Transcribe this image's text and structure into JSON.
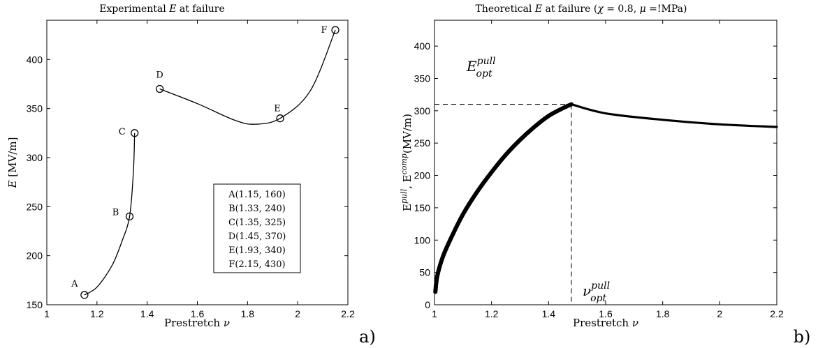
{
  "chart_data": [
    {
      "type": "line",
      "title": "Experimental E at failure",
      "xlabel": "Prestretch ν",
      "ylabel": "E [MV/m]",
      "xlim": [
        1,
        2.2
      ],
      "ylim": [
        150,
        440
      ],
      "xticks": [
        "1",
        "1.2",
        "1.4",
        "1.6",
        "1.8",
        "2",
        "2.2"
      ],
      "yticks": [
        "150",
        "200",
        "250",
        "300",
        "350",
        "400"
      ],
      "points": [
        {
          "label": "A",
          "x": 1.15,
          "y": 160
        },
        {
          "label": "B",
          "x": 1.33,
          "y": 240
        },
        {
          "label": "C",
          "x": 1.35,
          "y": 325
        },
        {
          "label": "D",
          "x": 1.45,
          "y": 370
        },
        {
          "label": "E",
          "x": 1.93,
          "y": 340
        },
        {
          "label": "F",
          "x": 2.15,
          "y": 430
        }
      ],
      "curves": [
        [
          [
            1.15,
            160
          ],
          [
            1.2,
            168
          ],
          [
            1.26,
            190
          ],
          [
            1.3,
            215
          ],
          [
            1.33,
            240
          ],
          [
            1.345,
            285
          ],
          [
            1.35,
            325
          ]
        ],
        [
          [
            1.45,
            370
          ],
          [
            1.6,
            355
          ],
          [
            1.75,
            338
          ],
          [
            1.83,
            334
          ],
          [
            1.93,
            340
          ],
          [
            2.05,
            368
          ],
          [
            2.15,
            430
          ]
        ]
      ],
      "legend_entries": [
        "A(1.15, 160)",
        "B(1.33, 240)",
        "C(1.35, 325)",
        "D(1.45, 370)",
        "E(1.93, 340)",
        "F(2.15, 430)"
      ],
      "legend_placement": "bottom-right",
      "panel_label": "a)"
    },
    {
      "type": "line",
      "title": "Theoretical E at failure (χ = 0.8, μ =!MPa)",
      "xlabel": "Prestretch ν",
      "ylabel": "E^pull, E^comp (MV/m)",
      "xlim": [
        1,
        2.2
      ],
      "ylim": [
        0,
        440
      ],
      "xticks": [
        "1",
        "1.2",
        "1.4",
        "1.6",
        "1.8",
        "2",
        "2.2"
      ],
      "yticks": [
        "0",
        "50",
        "100",
        "150",
        "200",
        "250",
        "300",
        "350",
        "400"
      ],
      "series": [
        {
          "values": [
            [
              1.003,
              20
            ],
            [
              1.01,
              45
            ],
            [
              1.03,
              75
            ],
            [
              1.06,
              105
            ],
            [
              1.1,
              140
            ],
            [
              1.15,
              175
            ],
            [
              1.2,
              205
            ],
            [
              1.25,
              232
            ],
            [
              1.3,
              255
            ],
            [
              1.35,
              275
            ],
            [
              1.4,
              292
            ],
            [
              1.45,
              304
            ],
            [
              1.48,
              310
            ]
          ]
        },
        {
          "values": [
            [
              1.48,
              310
            ],
            [
              1.6,
              296
            ],
            [
              1.8,
              286
            ],
            [
              2.0,
              279
            ],
            [
              2.2,
              275
            ]
          ]
        }
      ],
      "optimum": {
        "x": 1.48,
        "y": 310
      },
      "annotations": {
        "E_sym": "E",
        "E_sup": "pull",
        "E_sub": "opt",
        "nu_sym": "ν",
        "nu_sup": "pull",
        "nu_sub": "opt"
      },
      "panel_label": "b)"
    }
  ]
}
